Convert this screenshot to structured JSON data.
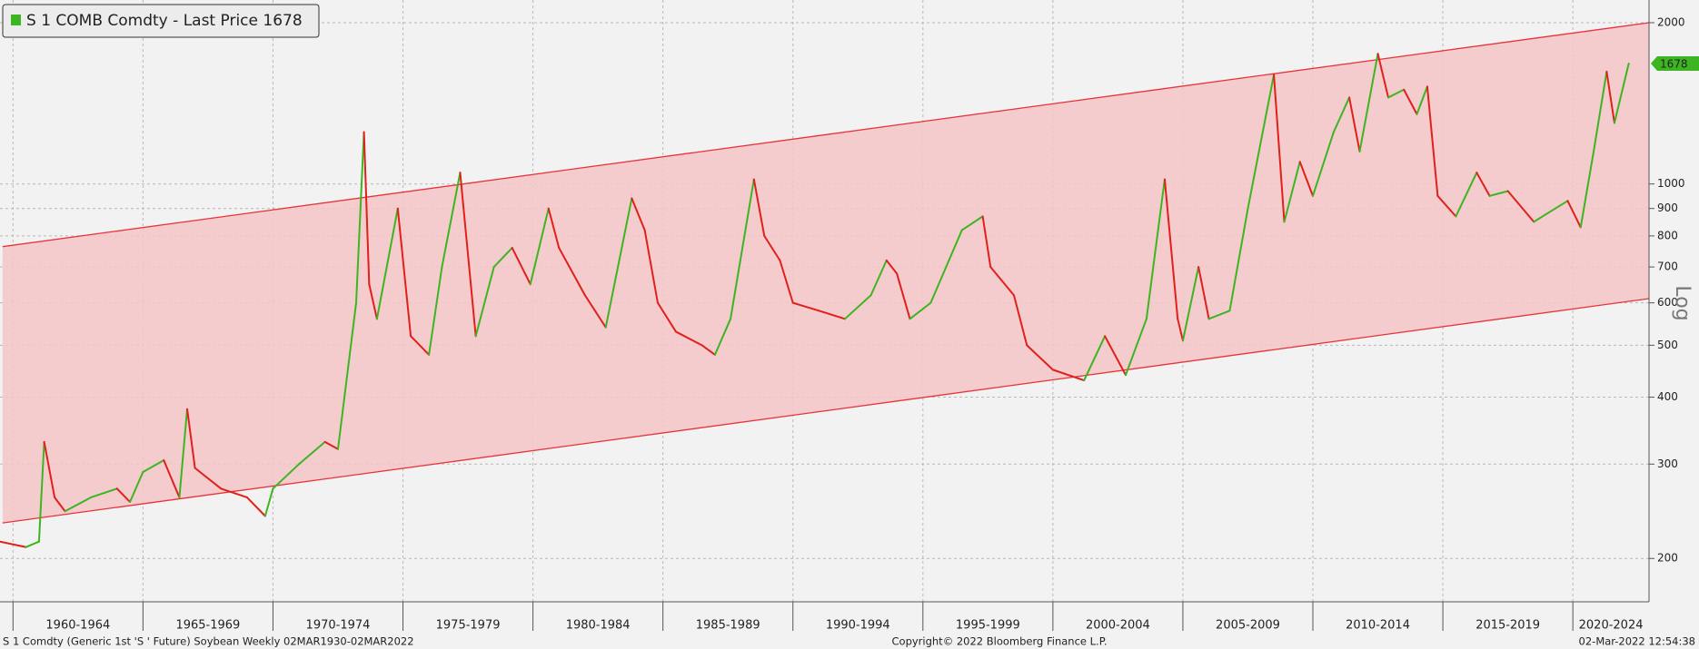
{
  "chart_data": {
    "type": "line",
    "log_scale": true,
    "grid": true,
    "up_color": "#3cb521",
    "down_color": "#e0201a",
    "channel_color": "#f5c6c8",
    "channel_line_color": "#e8323a",
    "legend_position": "top-left",
    "y_axis_label": "Log",
    "footer_left": "S 1 Comdty (Generic 1st 'S ' Future) Soybean  Weekly 02MAR1930-02MAR2022",
    "footer_center": "Copyright© 2022 Bloomberg Finance L.P.",
    "footer_right": "02-Mar-2022 12:54:38",
    "xlim": [
      1959.5,
      2022.93
    ],
    "ylim": [
      166,
      2205
    ],
    "yticks": [
      200,
      300,
      400,
      500,
      600,
      700,
      800,
      900,
      1000,
      2000
    ],
    "xticks": [
      {
        "value": 1960,
        "label": "1960-1964"
      },
      {
        "value": 1965,
        "label": "1965-1969"
      },
      {
        "value": 1970,
        "label": "1970-1974"
      },
      {
        "value": 1975,
        "label": "1975-1979"
      },
      {
        "value": 1980,
        "label": "1980-1984"
      },
      {
        "value": 1985,
        "label": "1985-1989"
      },
      {
        "value": 1990,
        "label": "1990-1994"
      },
      {
        "value": 1995,
        "label": "1995-1999"
      },
      {
        "value": 2000,
        "label": "2000-2004"
      },
      {
        "value": 2005,
        "label": "2005-2009"
      },
      {
        "value": 2010,
        "label": "2010-2014"
      },
      {
        "value": 2015,
        "label": "2015-2019"
      },
      {
        "value": 2020,
        "label": "2020-2024"
      }
    ],
    "channel": {
      "x": [
        1959.6,
        2022.93
      ],
      "upper": [
        764,
        2000
      ],
      "lower": [
        233,
        611
      ]
    },
    "x": [
      1959.5,
      1960.5,
      1961.0,
      1961.2,
      1961.6,
      1962,
      1963,
      1964,
      1964.5,
      1965,
      1965.8,
      1966.4,
      1966.7,
      1967,
      1968,
      1969,
      1969.7,
      1970,
      1971,
      1972,
      1972.5,
      1973.2,
      1973.5,
      1973.7,
      1974,
      1974.8,
      1975.3,
      1976,
      1976.5,
      1977.2,
      1977.8,
      1978.5,
      1979.2,
      1979.9,
      1980.6,
      1981,
      1982,
      1982.8,
      1983.8,
      1984.3,
      1984.8,
      1985.5,
      1986.5,
      1987,
      1987.6,
      1988.5,
      1988.9,
      1989.5,
      1990,
      1991,
      1992,
      1993,
      1993.6,
      1994,
      1994.5,
      1995.3,
      1996.5,
      1997.3,
      1997.6,
      1998.5,
      1999,
      2000,
      2001.2,
      2002,
      2002.8,
      2003.6,
      2004.3,
      2004.8,
      2005,
      2005.6,
      2006,
      2006.8,
      2007.5,
      2008.5,
      2008.9,
      2009.5,
      2010,
      2010.8,
      2011.4,
      2011.8,
      2012.5,
      2012.9,
      2013.5,
      2014,
      2014.4,
      2014.8,
      2015.5,
      2016.3,
      2016.8,
      2017.5,
      2018.5,
      2019,
      2019.8,
      2020.3,
      2020.8,
      2021.3,
      2021.6,
      2022.15
    ],
    "series": [
      {
        "name": "S 1 COMB Comdty - Last Price 1678",
        "color": "#3cb521",
        "values": [
          215,
          210,
          215,
          330,
          260,
          245,
          260,
          270,
          255,
          290,
          305,
          260,
          380,
          295,
          270,
          260,
          240,
          270,
          300,
          330,
          320,
          600,
          1250,
          650,
          560,
          900,
          520,
          480,
          700,
          1050,
          520,
          700,
          760,
          650,
          900,
          760,
          620,
          540,
          940,
          820,
          600,
          530,
          500,
          480,
          560,
          1020,
          800,
          720,
          600,
          580,
          560,
          620,
          720,
          680,
          560,
          600,
          820,
          870,
          700,
          620,
          500,
          450,
          430,
          520,
          440,
          560,
          1020,
          560,
          510,
          700,
          560,
          580,
          900,
          1600,
          850,
          1100,
          950,
          1250,
          1450,
          1150,
          1750,
          1450,
          1500,
          1350,
          1520,
          950,
          870,
          1050,
          950,
          970,
          850,
          880,
          930,
          830,
          1150,
          1620,
          1300,
          1678
        ]
      }
    ]
  }
}
